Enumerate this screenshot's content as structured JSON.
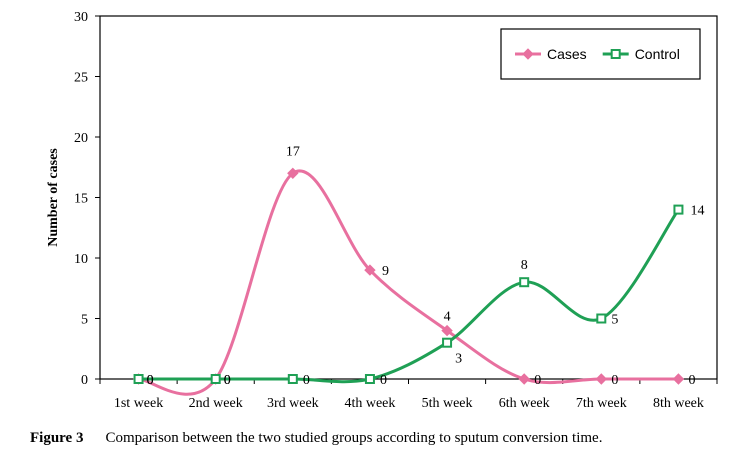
{
  "chart_data": {
    "type": "line",
    "categories": [
      "1st week",
      "2nd week",
      "3rd week",
      "4th week",
      "5th week",
      "6th week",
      "7th week",
      "8th week"
    ],
    "series": [
      {
        "name": "Cases",
        "values": [
          0,
          0,
          17,
          9,
          4,
          0,
          0,
          0
        ],
        "color": "#E8709F",
        "marker": "diamond"
      },
      {
        "name": "Control",
        "values": [
          0,
          0,
          0,
          0,
          3,
          8,
          5,
          14
        ],
        "color": "#1FA055",
        "marker": "square"
      }
    ],
    "ylabel": "Number of cases",
    "xlabel": "",
    "ylim": [
      0,
      30
    ],
    "yticks": [
      0,
      5,
      10,
      15,
      20,
      25,
      30
    ],
    "legend": "top-right",
    "grid": false,
    "smooth": true
  },
  "caption": {
    "label": "Figure 3",
    "text": "Comparison between the two studied groups according to sputum conversion time."
  }
}
